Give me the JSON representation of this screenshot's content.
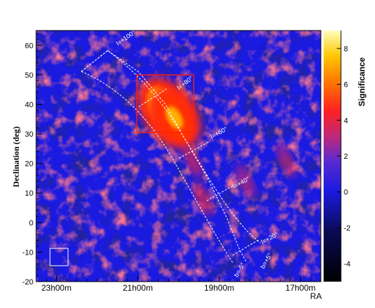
{
  "chart_data": {
    "type": "heatmap",
    "title": "",
    "xlabel": "RA",
    "ylabel": "Declination (deg)",
    "xlim": [
      "23h30m",
      "16h30m"
    ],
    "ylim": [
      -20,
      65
    ],
    "x_ticks": [
      "23h00m",
      "21h00m",
      "19h00m",
      "17h00m"
    ],
    "y_ticks": [
      -20,
      -10,
      0,
      10,
      20,
      30,
      40,
      50,
      60
    ],
    "colorbar": {
      "label": "Significance",
      "range": [
        -5,
        9
      ],
      "ticks": [
        -4,
        -2,
        0,
        2,
        4,
        6,
        8
      ]
    },
    "galactic_lines": [
      "l=+100°",
      "l=+80°",
      "l=+60°",
      "l=+40°",
      "l=+20°",
      "b=-5°",
      "b=+5°"
    ],
    "hotspots": [
      {
        "ra_h": 20.35,
        "dec": 38.5,
        "significance": 8.5
      },
      {
        "ra_h": 20.1,
        "dec": 35.5,
        "significance": 6
      },
      {
        "ra_h": 19.65,
        "dec": 21,
        "significance": 3.5
      },
      {
        "ra_h": 19.4,
        "dec": 8,
        "significance": 3
      },
      {
        "ra_h": 18.35,
        "dec": 14,
        "significance": 2.5
      },
      {
        "ra_h": 17.35,
        "dec": 21,
        "significance": 2.5
      }
    ],
    "colors": {
      "background": "#1a1ae0",
      "frame": "#000000",
      "galactic_plane": "#ffffff",
      "region_box": "#ff2200"
    }
  }
}
